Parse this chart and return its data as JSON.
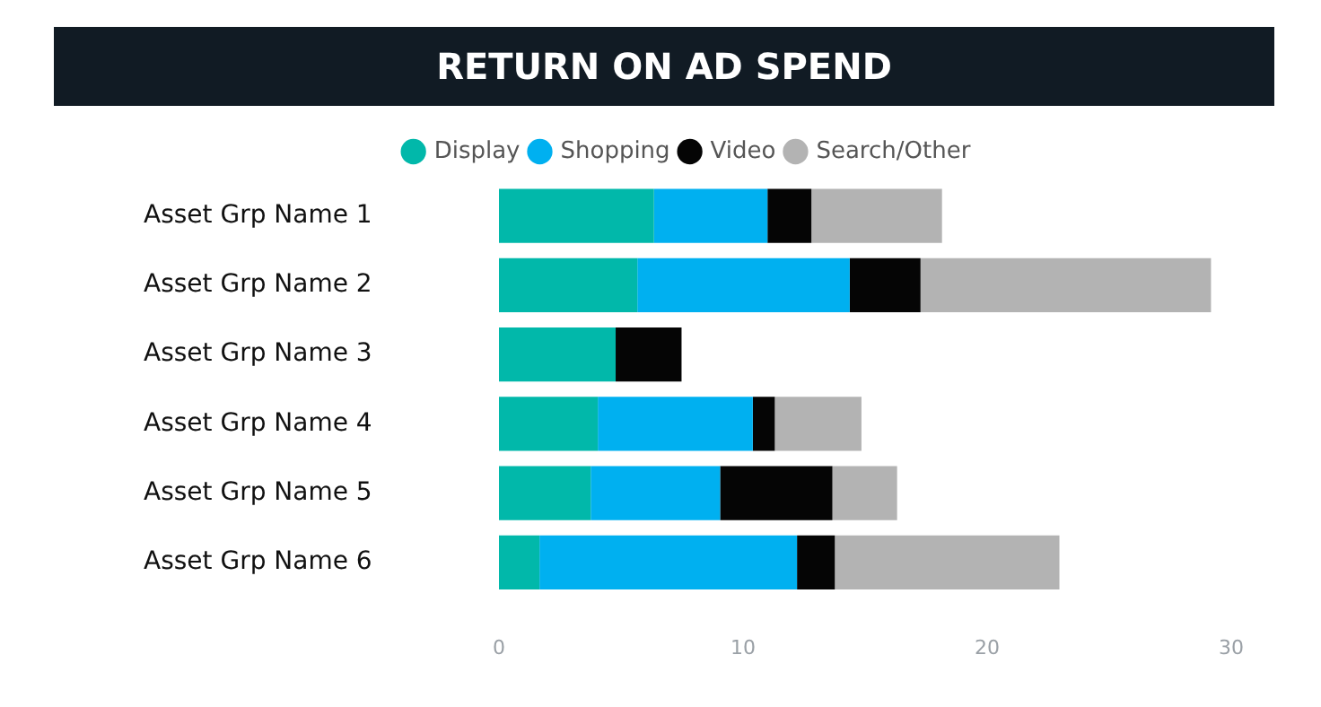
{
  "chart_data": {
    "type": "bar",
    "orientation": "horizontal",
    "stacked": true,
    "title": "RETURN ON AD SPEND",
    "categories": [
      "Asset Grp Name 1",
      "Asset Grp Name 2",
      "Asset Grp Name 3",
      "Asset Grp Name 4",
      "Asset Grp Name 5",
      "Asset Grp Name 6"
    ],
    "series": [
      {
        "name": "Display",
        "color": "#01b8aa",
        "values": [
          6.35,
          5.67,
          4.78,
          4.05,
          3.76,
          1.66
        ]
      },
      {
        "name": "Shopping",
        "color": "#00b0f0",
        "values": [
          4.65,
          8.7,
          null,
          6.35,
          5.3,
          10.55
        ]
      },
      {
        "name": "Video",
        "color": "#050505",
        "values": [
          1.8,
          2.9,
          2.7,
          0.9,
          4.6,
          1.55
        ]
      },
      {
        "name": "Search/Other",
        "color": "#b3b3b3",
        "values": [
          5.35,
          11.9,
          null,
          3.55,
          2.65,
          9.2
        ]
      }
    ],
    "xlim": [
      0,
      30
    ],
    "xticks": [
      0,
      10,
      20,
      30
    ],
    "grid": false,
    "legend": "top"
  }
}
